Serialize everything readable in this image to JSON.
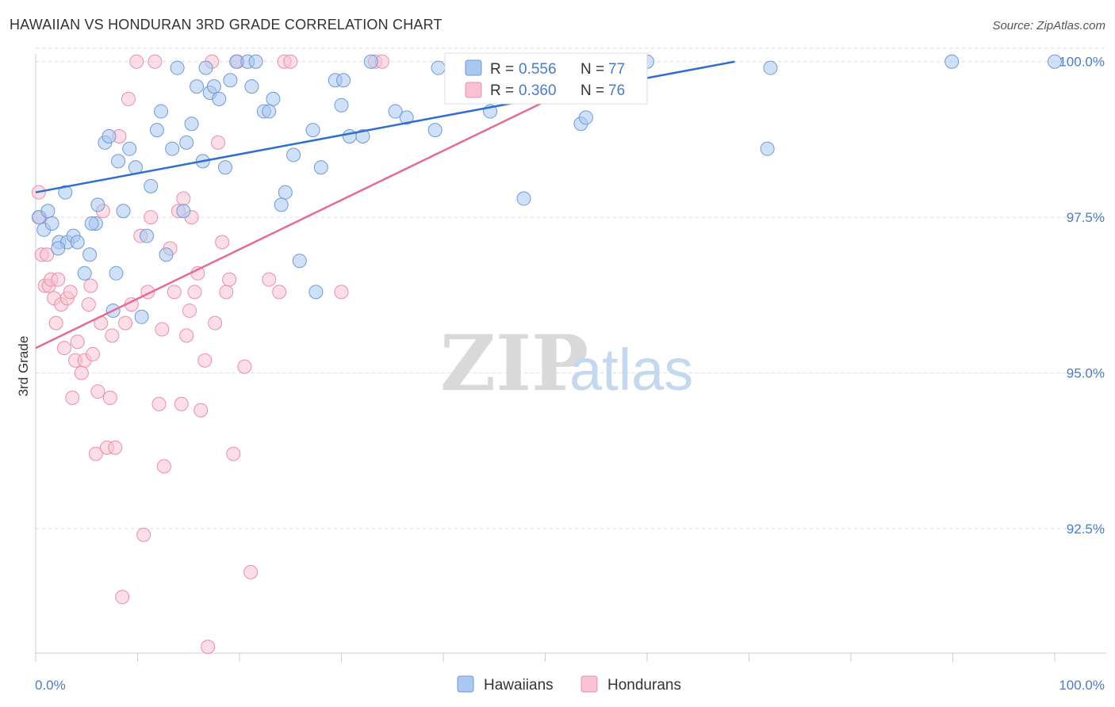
{
  "title": "HAWAIIAN VS HONDURAN 3RD GRADE CORRELATION CHART",
  "source": "Source: ZipAtlas.com",
  "watermark": {
    "zip": "ZIP",
    "atlas": "atlas"
  },
  "colors": {
    "blue_fill": "#aac8f0",
    "blue_stroke": "#6f9ad8",
    "blue_line": "#2f6fcc",
    "pink_fill": "#f8c2d2",
    "pink_stroke": "#ea8fac",
    "pink_line": "#e46b92",
    "tick_text": "#4a7cc7",
    "grid": "#d8dde6"
  },
  "chart_data": {
    "type": "scatter",
    "xlabel": "",
    "ylabel": "3rd Grade",
    "xlim": [
      0,
      100
    ],
    "ylim": [
      90.5,
      100.2
    ],
    "x_tick_labels": [
      "0.0%",
      "100.0%"
    ],
    "y_ticks": [
      92.5,
      95.0,
      97.5,
      100.0
    ],
    "y_tick_labels": [
      "92.5%",
      "95.0%",
      "97.5%",
      "100.0%"
    ],
    "grid": true,
    "legend": [
      {
        "swatch": "blue",
        "r_label": "R = ",
        "r_value": "0.556",
        "n_label": "N = ",
        "n_value": "77"
      },
      {
        "swatch": "pink",
        "r_label": "R = ",
        "r_value": "0.360",
        "n_label": "N = ",
        "n_value": "76"
      }
    ],
    "series": [
      {
        "name": "Hawaiians",
        "color": "#aac8f0",
        "trend": {
          "x": [
            0,
            68.6
          ],
          "y": [
            97.9,
            100.0
          ]
        },
        "points": [
          [
            0.3,
            97.5
          ],
          [
            0.8,
            97.3
          ],
          [
            1.2,
            97.6
          ],
          [
            1.6,
            97.4
          ],
          [
            2.3,
            97.1
          ],
          [
            2.9,
            97.9
          ],
          [
            3.1,
            97.1
          ],
          [
            3.7,
            97.2
          ],
          [
            4.1,
            97.1
          ],
          [
            4.8,
            96.6
          ],
          [
            5.3,
            96.9
          ],
          [
            5.9,
            97.4
          ],
          [
            6.1,
            97.7
          ],
          [
            6.8,
            98.7
          ],
          [
            7.2,
            98.8
          ],
          [
            7.6,
            96.0
          ],
          [
            8.1,
            98.4
          ],
          [
            8.6,
            97.6
          ],
          [
            9.2,
            98.6
          ],
          [
            9.8,
            98.3
          ],
          [
            10.4,
            95.9
          ],
          [
            10.9,
            97.2
          ],
          [
            11.3,
            98.0
          ],
          [
            11.9,
            98.9
          ],
          [
            12.3,
            99.2
          ],
          [
            12.8,
            96.9
          ],
          [
            13.4,
            98.6
          ],
          [
            13.9,
            99.9
          ],
          [
            14.5,
            97.6
          ],
          [
            14.8,
            98.7
          ],
          [
            15.3,
            99.0
          ],
          [
            15.8,
            99.6
          ],
          [
            16.4,
            98.4
          ],
          [
            16.7,
            99.9
          ],
          [
            17.1,
            99.5
          ],
          [
            17.5,
            99.6
          ],
          [
            18.0,
            99.4
          ],
          [
            18.6,
            98.3
          ],
          [
            19.1,
            99.7
          ],
          [
            19.7,
            100.0
          ],
          [
            20.8,
            100.0
          ],
          [
            21.2,
            99.6
          ],
          [
            21.6,
            100.0
          ],
          [
            22.4,
            99.2
          ],
          [
            22.9,
            99.2
          ],
          [
            23.3,
            99.4
          ],
          [
            24.1,
            97.7
          ],
          [
            24.5,
            97.9
          ],
          [
            25.3,
            98.5
          ],
          [
            25.9,
            96.8
          ],
          [
            27.5,
            96.3
          ],
          [
            27.2,
            98.9
          ],
          [
            28.0,
            98.3
          ],
          [
            29.4,
            99.7
          ],
          [
            30.0,
            99.3
          ],
          [
            30.2,
            99.7
          ],
          [
            30.8,
            98.8
          ],
          [
            32.1,
            98.8
          ],
          [
            32.9,
            100.0
          ],
          [
            35.3,
            99.2
          ],
          [
            36.4,
            99.1
          ],
          [
            39.2,
            98.9
          ],
          [
            39.5,
            99.9
          ],
          [
            43.9,
            99.5
          ],
          [
            44.6,
            99.2
          ],
          [
            47.9,
            97.8
          ],
          [
            50.2,
            100.0
          ],
          [
            53.5,
            99.0
          ],
          [
            54.0,
            99.1
          ],
          [
            60.0,
            100.0
          ],
          [
            72.1,
            99.9
          ],
          [
            71.8,
            98.6
          ],
          [
            89.9,
            100.0
          ],
          [
            100.0,
            100.0
          ],
          [
            2.2,
            97.0
          ],
          [
            5.5,
            97.4
          ],
          [
            7.9,
            96.6
          ]
        ]
      },
      {
        "name": "Hondurans",
        "color": "#f8c2d2",
        "trend": {
          "x": [
            0,
            50.5
          ],
          "y": [
            95.4,
            99.4
          ]
        },
        "points": [
          [
            0.3,
            97.9
          ],
          [
            0.4,
            97.5
          ],
          [
            0.6,
            96.9
          ],
          [
            0.9,
            96.4
          ],
          [
            1.1,
            96.9
          ],
          [
            1.3,
            96.4
          ],
          [
            1.5,
            96.5
          ],
          [
            1.8,
            96.2
          ],
          [
            2.0,
            95.8
          ],
          [
            2.2,
            96.5
          ],
          [
            2.5,
            96.1
          ],
          [
            2.8,
            95.4
          ],
          [
            3.1,
            96.2
          ],
          [
            3.4,
            96.3
          ],
          [
            3.6,
            94.6
          ],
          [
            3.9,
            95.2
          ],
          [
            4.1,
            95.5
          ],
          [
            4.5,
            95.0
          ],
          [
            4.8,
            95.2
          ],
          [
            5.2,
            96.1
          ],
          [
            5.4,
            96.4
          ],
          [
            5.6,
            95.3
          ],
          [
            5.9,
            93.7
          ],
          [
            6.1,
            94.7
          ],
          [
            6.4,
            95.8
          ],
          [
            6.6,
            97.6
          ],
          [
            7.0,
            93.8
          ],
          [
            7.3,
            94.6
          ],
          [
            7.5,
            95.6
          ],
          [
            7.8,
            93.8
          ],
          [
            8.2,
            98.8
          ],
          [
            8.5,
            91.4
          ],
          [
            8.8,
            95.8
          ],
          [
            9.1,
            99.4
          ],
          [
            9.4,
            96.1
          ],
          [
            9.9,
            100.0
          ],
          [
            10.3,
            97.2
          ],
          [
            10.6,
            92.4
          ],
          [
            11.0,
            96.3
          ],
          [
            11.3,
            97.5
          ],
          [
            11.7,
            100.0
          ],
          [
            12.1,
            94.5
          ],
          [
            12.4,
            95.7
          ],
          [
            12.6,
            93.5
          ],
          [
            13.2,
            97.0
          ],
          [
            13.6,
            96.3
          ],
          [
            14.0,
            97.6
          ],
          [
            14.3,
            94.5
          ],
          [
            14.5,
            97.8
          ],
          [
            14.8,
            95.6
          ],
          [
            15.1,
            96.0
          ],
          [
            15.3,
            97.5
          ],
          [
            15.6,
            96.3
          ],
          [
            15.9,
            96.6
          ],
          [
            16.2,
            94.4
          ],
          [
            16.6,
            95.2
          ],
          [
            16.9,
            90.6
          ],
          [
            17.3,
            100.0
          ],
          [
            17.6,
            95.8
          ],
          [
            17.9,
            98.7
          ],
          [
            18.3,
            97.1
          ],
          [
            18.7,
            96.3
          ],
          [
            19.0,
            96.5
          ],
          [
            19.4,
            93.7
          ],
          [
            19.8,
            100.0
          ],
          [
            20.5,
            95.1
          ],
          [
            21.1,
            91.8
          ],
          [
            22.9,
            96.5
          ],
          [
            23.9,
            96.3
          ],
          [
            24.4,
            100.0
          ],
          [
            25.0,
            100.0
          ],
          [
            30.0,
            96.3
          ],
          [
            33.3,
            100.0
          ],
          [
            34.0,
            100.0
          ],
          [
            43.9,
            100.0
          ],
          [
            48.0,
            100.0
          ]
        ]
      }
    ]
  },
  "bottom_legend": [
    {
      "label": "Hawaiians",
      "swatch": "blue"
    },
    {
      "label": "Hondurans",
      "swatch": "pink"
    }
  ]
}
